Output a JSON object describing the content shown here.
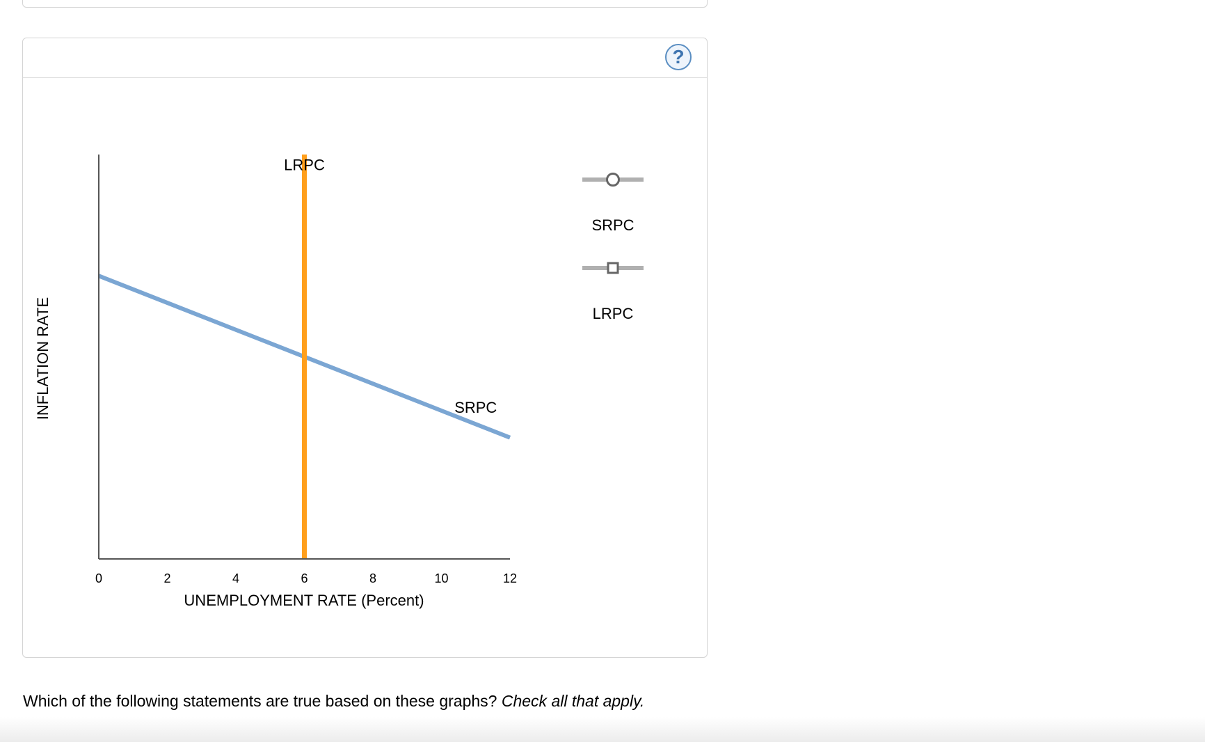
{
  "help": {
    "symbol": "?"
  },
  "question": {
    "text": "Which of the following statements are true based on these graphs?",
    "emphasis": "Check all that apply."
  },
  "legend": {
    "items": [
      {
        "label": "SRPC",
        "marker": "circle-marker-icon"
      },
      {
        "label": "LRPC",
        "marker": "square-marker-icon"
      }
    ]
  },
  "chart_data": {
    "type": "line",
    "xlabel": "UNEMPLOYMENT RATE (Percent)",
    "ylabel": "INFLATION RATE",
    "xlim": [
      0,
      12
    ],
    "ylim": [
      0,
      12
    ],
    "x_ticks": [
      "0",
      "2",
      "4",
      "6",
      "8",
      "10",
      "12"
    ],
    "y_ticks": [],
    "grid": false,
    "colors": {
      "SRPC": "#7ba6d3",
      "LRPC": "#ff9f1c",
      "axis": "#555555"
    },
    "series": [
      {
        "name": "SRPC",
        "x": [
          0,
          12
        ],
        "y": [
          8.4,
          3.6
        ]
      },
      {
        "name": "LRPC",
        "x": [
          6,
          6
        ],
        "y": [
          0,
          12
        ]
      }
    ],
    "annotations": [
      {
        "text": "LRPC",
        "x": 6,
        "y": 11.7
      },
      {
        "text": "SRPC",
        "x": 11,
        "y": 4.5
      }
    ]
  }
}
